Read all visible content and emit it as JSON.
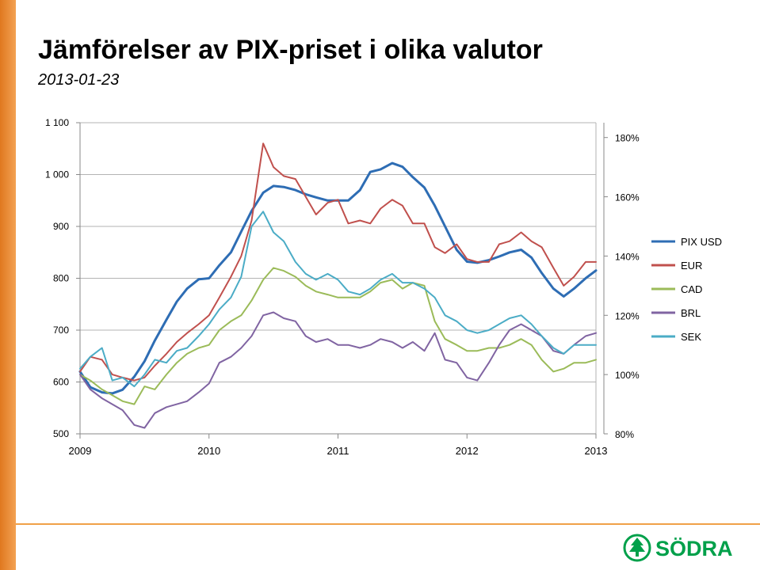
{
  "title": "Jämförelser av PIX-priset i olika valutor",
  "subtitle": "2013-01-23",
  "logo_text": "SÖDRA",
  "colors": {
    "accent_bar": "#e88a2e",
    "brand_green": "#00a04a",
    "grid": "#b3b3b3"
  },
  "chart_data": {
    "type": "line",
    "x_ticks": [
      "2009",
      "2010",
      "2011",
      "2012",
      "2013"
    ],
    "xlim": [
      2009,
      2013
    ],
    "y_left": {
      "ticks": [
        "500",
        "600",
        "700",
        "800",
        "900",
        "1 000",
        "1 100"
      ],
      "lim": [
        500,
        1100
      ]
    },
    "y_right": {
      "ticks": [
        "80%",
        "100%",
        "120%",
        "140%",
        "160%",
        "180%"
      ],
      "lim": [
        80,
        185
      ]
    },
    "grid": true,
    "legend_position": "right",
    "series": [
      {
        "name": "PIX USD",
        "axis": "left",
        "color": "#2e6db4",
        "width": 3,
        "x": [
          2009.0,
          2009.08,
          2009.17,
          2009.25,
          2009.33,
          2009.42,
          2009.5,
          2009.58,
          2009.67,
          2009.75,
          2009.83,
          2009.92,
          2010.0,
          2010.08,
          2010.17,
          2010.25,
          2010.33,
          2010.42,
          2010.5,
          2010.58,
          2010.67,
          2010.75,
          2010.83,
          2010.92,
          2011.0,
          2011.08,
          2011.17,
          2011.25,
          2011.33,
          2011.42,
          2011.5,
          2011.58,
          2011.67,
          2011.75,
          2011.83,
          2011.92,
          2012.0,
          2012.08,
          2012.17,
          2012.25,
          2012.33,
          2012.42,
          2012.5,
          2012.58,
          2012.67,
          2012.75,
          2012.83,
          2012.92,
          2013.0
        ],
        "y": [
          620,
          590,
          580,
          578,
          585,
          610,
          640,
          680,
          720,
          755,
          780,
          798,
          800,
          825,
          850,
          890,
          930,
          965,
          978,
          976,
          970,
          962,
          956,
          950,
          950,
          950,
          970,
          1005,
          1010,
          1022,
          1015,
          995,
          975,
          940,
          900,
          855,
          832,
          830,
          835,
          842,
          850,
          855,
          840,
          810,
          780,
          765,
          780,
          800,
          815
        ]
      },
      {
        "name": "EUR",
        "axis": "right",
        "color": "#c0504d",
        "width": 2,
        "x": [
          2009.0,
          2009.08,
          2009.17,
          2009.25,
          2009.33,
          2009.42,
          2009.5,
          2009.58,
          2009.67,
          2009.75,
          2009.83,
          2009.92,
          2010.0,
          2010.08,
          2010.17,
          2010.25,
          2010.33,
          2010.42,
          2010.5,
          2010.58,
          2010.67,
          2010.75,
          2010.83,
          2010.92,
          2011.0,
          2011.08,
          2011.17,
          2011.25,
          2011.33,
          2011.42,
          2011.5,
          2011.58,
          2011.67,
          2011.75,
          2011.83,
          2011.92,
          2012.0,
          2012.08,
          2012.17,
          2012.25,
          2012.33,
          2012.42,
          2012.5,
          2012.58,
          2012.67,
          2012.75,
          2012.83,
          2012.92,
          2013.0
        ],
        "y": [
          101,
          106,
          105,
          100,
          99,
          98,
          99,
          103,
          107,
          111,
          114,
          117,
          120,
          126,
          133,
          140,
          152,
          178,
          170,
          167,
          166,
          160,
          154,
          158,
          159,
          151,
          152,
          151,
          156,
          159,
          157,
          151,
          151,
          143,
          141,
          144,
          139,
          138,
          138,
          144,
          145,
          148,
          145,
          143,
          136,
          130,
          133,
          138,
          138
        ]
      },
      {
        "name": "CAD",
        "axis": "right",
        "color": "#9bbb59",
        "width": 2,
        "x": [
          2009.0,
          2009.08,
          2009.17,
          2009.25,
          2009.33,
          2009.42,
          2009.5,
          2009.58,
          2009.67,
          2009.75,
          2009.83,
          2009.92,
          2010.0,
          2010.08,
          2010.17,
          2010.25,
          2010.33,
          2010.42,
          2010.5,
          2010.58,
          2010.67,
          2010.75,
          2010.83,
          2010.92,
          2011.0,
          2011.08,
          2011.17,
          2011.25,
          2011.33,
          2011.42,
          2011.5,
          2011.58,
          2011.67,
          2011.75,
          2011.83,
          2011.92,
          2012.0,
          2012.08,
          2012.17,
          2012.25,
          2012.33,
          2012.42,
          2012.5,
          2012.58,
          2012.67,
          2012.75,
          2012.83,
          2012.92,
          2013.0
        ],
        "y": [
          100,
          98,
          95,
          93,
          91,
          90,
          96,
          95,
          100,
          104,
          107,
          109,
          110,
          115,
          118,
          120,
          125,
          132,
          136,
          135,
          133,
          130,
          128,
          127,
          126,
          126,
          126,
          128,
          131,
          132,
          129,
          131,
          130,
          118,
          112,
          110,
          108,
          108,
          109,
          109,
          110,
          112,
          110,
          105,
          101,
          102,
          104,
          104,
          105
        ]
      },
      {
        "name": "BRL",
        "axis": "right",
        "color": "#8064a2",
        "width": 2,
        "x": [
          2009.0,
          2009.08,
          2009.17,
          2009.25,
          2009.33,
          2009.42,
          2009.5,
          2009.58,
          2009.67,
          2009.75,
          2009.83,
          2009.92,
          2010.0,
          2010.08,
          2010.17,
          2010.25,
          2010.33,
          2010.42,
          2010.5,
          2010.58,
          2010.67,
          2010.75,
          2010.83,
          2010.92,
          2011.0,
          2011.08,
          2011.17,
          2011.25,
          2011.33,
          2011.42,
          2011.5,
          2011.58,
          2011.67,
          2011.75,
          2011.83,
          2011.92,
          2012.0,
          2012.08,
          2012.17,
          2012.25,
          2012.33,
          2012.42,
          2012.5,
          2012.58,
          2012.67,
          2012.75,
          2012.83,
          2012.92,
          2013.0
        ],
        "y": [
          100,
          95,
          92,
          90,
          88,
          83,
          82,
          87,
          89,
          90,
          91,
          94,
          97,
          104,
          106,
          109,
          113,
          120,
          121,
          119,
          118,
          113,
          111,
          112,
          110,
          110,
          109,
          110,
          112,
          111,
          109,
          111,
          108,
          114,
          105,
          104,
          99,
          98,
          104,
          110,
          115,
          117,
          115,
          113,
          108,
          107,
          110,
          113,
          114
        ]
      },
      {
        "name": "SEK",
        "axis": "right",
        "color": "#4bacc6",
        "width": 2,
        "x": [
          2009.0,
          2009.08,
          2009.17,
          2009.25,
          2009.33,
          2009.42,
          2009.5,
          2009.58,
          2009.67,
          2009.75,
          2009.83,
          2009.92,
          2010.0,
          2010.08,
          2010.17,
          2010.25,
          2010.33,
          2010.42,
          2010.5,
          2010.58,
          2010.67,
          2010.75,
          2010.83,
          2010.92,
          2011.0,
          2011.08,
          2011.17,
          2011.25,
          2011.33,
          2011.42,
          2011.5,
          2011.58,
          2011.67,
          2011.75,
          2011.83,
          2011.92,
          2012.0,
          2012.08,
          2012.17,
          2012.25,
          2012.33,
          2012.42,
          2012.5,
          2012.58,
          2012.67,
          2012.75,
          2012.83,
          2012.92,
          2013.0
        ],
        "y": [
          102,
          106,
          109,
          98,
          99,
          96,
          100,
          105,
          104,
          108,
          109,
          113,
          117,
          122,
          126,
          133,
          150,
          155,
          148,
          145,
          138,
          134,
          132,
          134,
          132,
          128,
          127,
          129,
          132,
          134,
          131,
          131,
          129,
          126,
          120,
          118,
          115,
          114,
          115,
          117,
          119,
          120,
          117,
          113,
          109,
          107,
          110,
          110,
          110
        ]
      }
    ]
  }
}
